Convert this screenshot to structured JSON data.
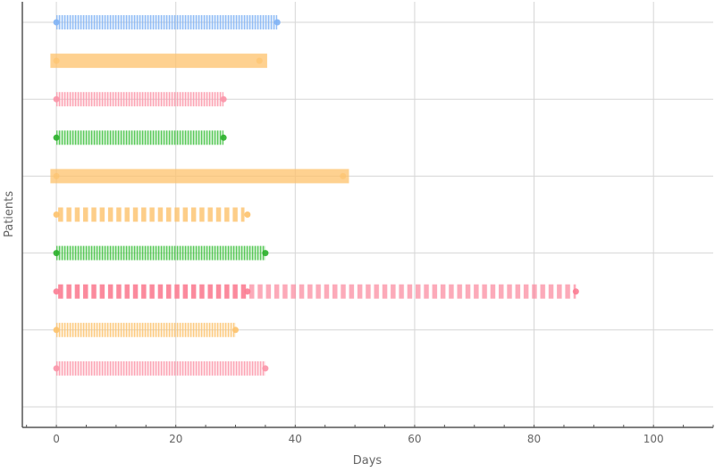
{
  "chart_data": {
    "type": "timeline",
    "xlabel": "Days",
    "ylabel": "Patients",
    "xlim": [
      -5.7,
      110
    ],
    "xticks": [
      0,
      20,
      40,
      60,
      80,
      100
    ],
    "grid": true,
    "rows": [
      {
        "color": "#7fb2f5",
        "style": "thin-stripes",
        "segments": [
          [
            0,
            37
          ]
        ],
        "markers": [
          0,
          37
        ]
      },
      {
        "color": "#fdc26b",
        "style": "solid",
        "segments": [
          [
            -1,
            35.3
          ]
        ],
        "markers": [
          0,
          34
        ]
      },
      {
        "color": "#fb95a8",
        "style": "thin-stripes",
        "segments": [
          [
            0,
            28
          ]
        ],
        "markers": [
          0,
          28
        ]
      },
      {
        "color": "#3cbf3c",
        "style": "thin-stripes",
        "segments": [
          [
            0,
            28
          ]
        ],
        "markers": [
          0,
          28
        ],
        "marker_color": "#2ab02a"
      },
      {
        "color": "#fdc26b",
        "style": "solid",
        "segments": [
          [
            -1,
            49
          ]
        ],
        "markers": [
          0,
          48
        ]
      },
      {
        "color": "#fdc26b",
        "style": "thick-dashes",
        "segments": [
          [
            0,
            31.5
          ]
        ],
        "markers": [
          0,
          32
        ]
      },
      {
        "color": "#3cbf3c",
        "style": "thin-stripes",
        "segments": [
          [
            0,
            35
          ]
        ],
        "markers": [
          0,
          35
        ],
        "marker_color": "#2ab02a"
      },
      {
        "color": "#fb7d93",
        "style": "thick-dashes",
        "segments": [
          [
            0,
            32
          ],
          [
            32,
            87
          ]
        ],
        "segment_opacity": [
          0.9,
          0.65
        ],
        "markers": [
          0,
          32,
          87
        ]
      },
      {
        "color": "#fdc26b",
        "style": "thin-stripes",
        "segments": [
          [
            0,
            30
          ]
        ],
        "markers": [
          0,
          30
        ]
      },
      {
        "color": "#fb95a8",
        "style": "thin-stripes",
        "segments": [
          [
            0,
            35
          ]
        ],
        "markers": [
          0,
          35
        ]
      }
    ]
  }
}
